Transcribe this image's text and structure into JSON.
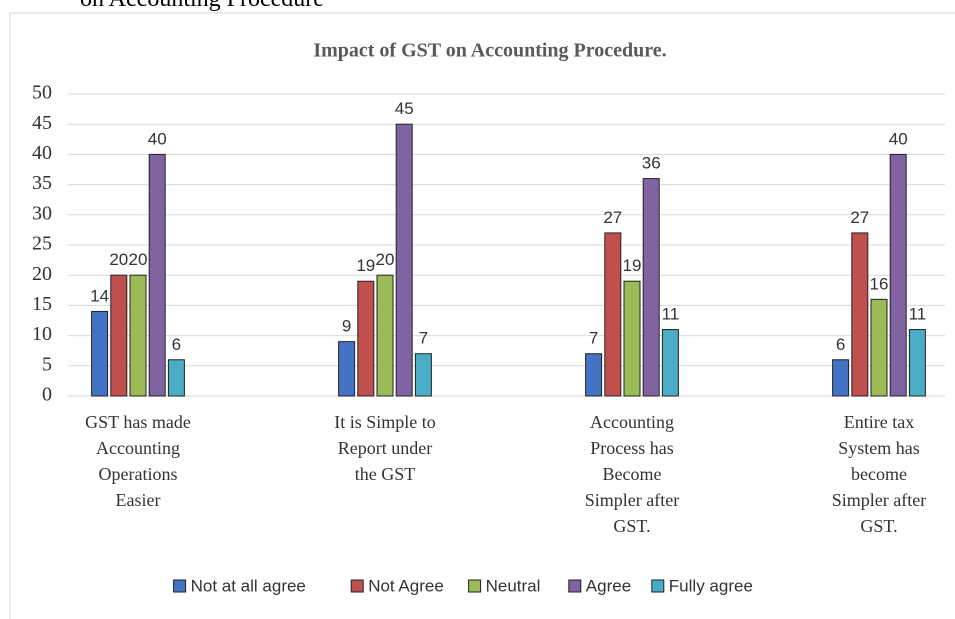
{
  "caption": "on Accounting Procedure",
  "chart_data": {
    "type": "bar",
    "title": "Impact of GST on Accounting Procedure.",
    "categories": [
      "GST has made Accounting Operations Easier",
      "It is Simple to Report under the GST",
      "Accounting Process has Become Simpler after GST.",
      "Entire tax System has become Simpler after GST."
    ],
    "series": [
      {
        "name": "Not at all agree",
        "color": "#4472c4",
        "values": [
          14,
          9,
          7,
          6
        ]
      },
      {
        "name": "Not Agree",
        "color": "#c0504d",
        "values": [
          20,
          19,
          27,
          27
        ]
      },
      {
        "name": "Neutral",
        "color": "#9bbb59",
        "values": [
          20,
          20,
          19,
          16
        ]
      },
      {
        "name": "Agree",
        "color": "#8064a2",
        "values": [
          40,
          45,
          36,
          40
        ]
      },
      {
        "name": "Fully agree",
        "color": "#4bacc6",
        "values": [
          6,
          7,
          11,
          11
        ]
      }
    ],
    "ylim": [
      0,
      50
    ],
    "yticks": [
      0,
      5,
      10,
      15,
      20,
      25,
      30,
      35,
      40,
      45,
      50
    ],
    "grid": true,
    "legend": "bottom"
  }
}
